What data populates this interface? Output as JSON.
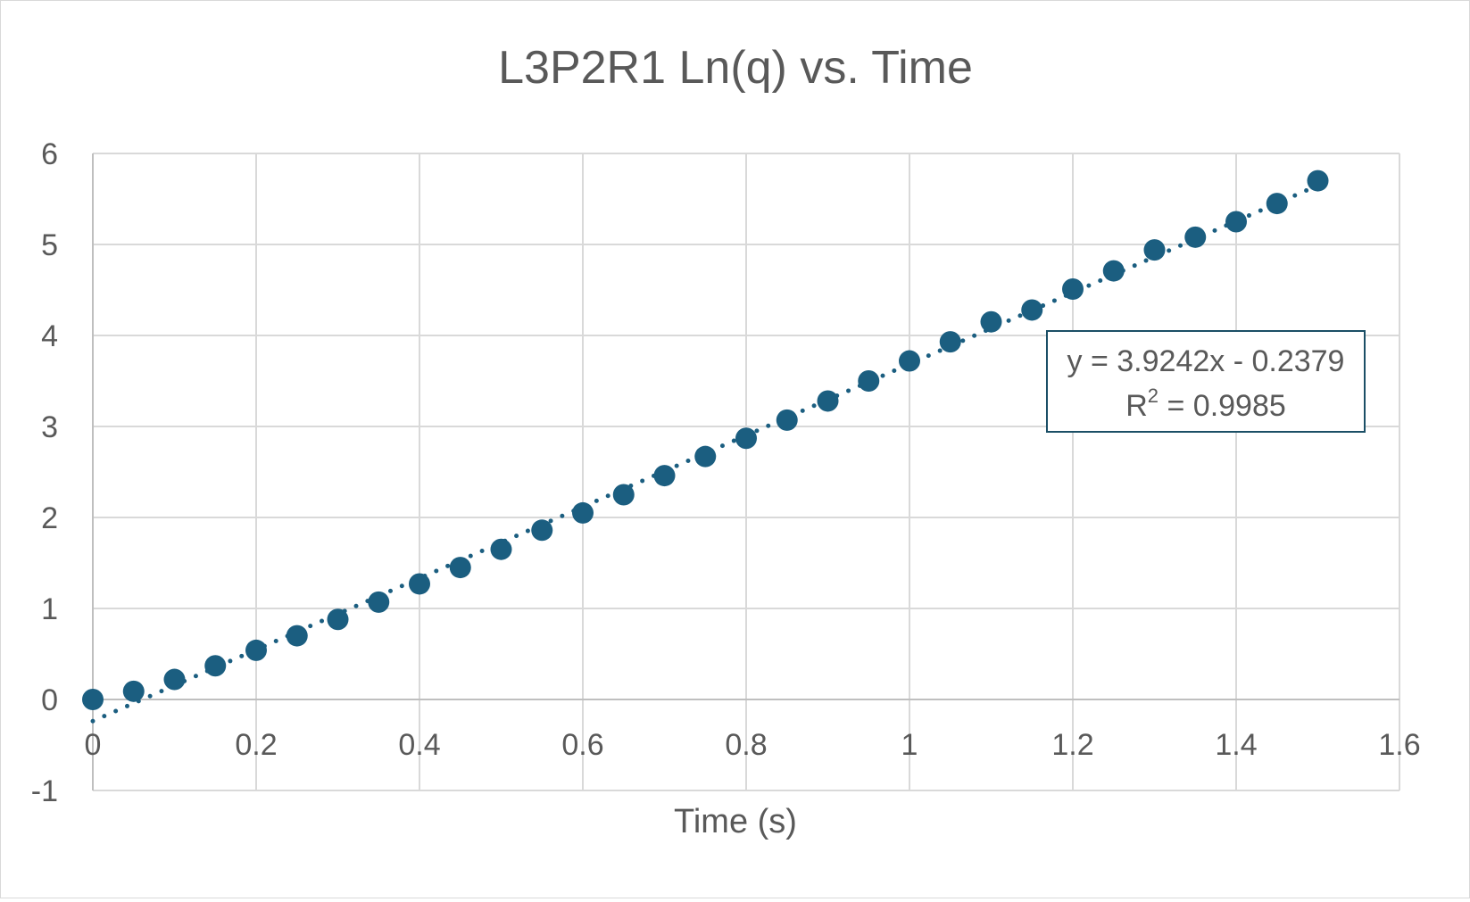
{
  "chart_data": {
    "type": "scatter",
    "title": "L3P2R1 Ln(q) vs. Time",
    "xlabel": "Time (s)",
    "ylabel": "",
    "xlim": [
      0,
      1.6
    ],
    "ylim": [
      -1,
      6
    ],
    "x_ticks": [
      "0",
      "0.2",
      "0.4",
      "0.6",
      "0.8",
      "1",
      "1.2",
      "1.4",
      "1.6"
    ],
    "y_ticks": [
      "6",
      "5",
      "4",
      "3",
      "2",
      "1",
      "0",
      "-1"
    ],
    "grid": true,
    "legend": "none",
    "series": [
      {
        "color": "#1b5e80",
        "x": [
          0,
          0.05,
          0.1,
          0.15,
          0.2,
          0.25,
          0.3,
          0.35,
          0.4,
          0.45,
          0.5,
          0.55,
          0.6,
          0.65,
          0.7,
          0.75,
          0.8,
          0.85,
          0.9,
          0.95,
          1.0,
          1.05,
          1.1,
          1.15,
          1.2,
          1.25,
          1.3,
          1.35,
          1.4,
          1.45,
          1.5
        ],
        "y": [
          0.0,
          0.09,
          0.22,
          0.37,
          0.54,
          0.7,
          0.88,
          1.07,
          1.27,
          1.45,
          1.65,
          1.86,
          2.05,
          2.25,
          2.46,
          2.67,
          2.87,
          3.07,
          3.28,
          3.5,
          3.72,
          3.93,
          4.15,
          4.28,
          4.51,
          4.71,
          4.94,
          5.08,
          5.25,
          5.45,
          5.7
        ]
      }
    ],
    "trendline": {
      "type": "linear",
      "slope": 3.9242,
      "intercept": -0.2379,
      "style": "dotted",
      "color": "#1b5e80",
      "equation_label": "y = 3.9242x - 0.2379",
      "r2_prefix": "R",
      "r2_sup": "2",
      "r2_value": " = 0.9985"
    }
  }
}
